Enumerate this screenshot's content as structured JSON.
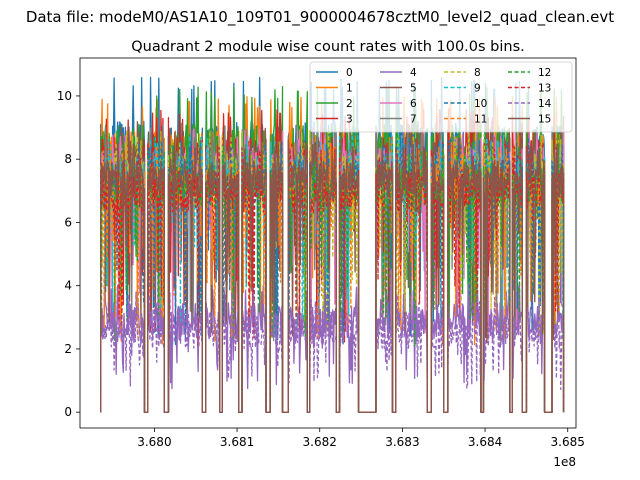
{
  "chart_data": {
    "type": "line",
    "suptitle": "Data file: modeM0/AS1A10_109T01_9000004678cztM0_level2_quad_clean.evt",
    "title": "Quadrant 2 module wise count rates with 100.0s bins.",
    "xlabel": "",
    "ylabel": "",
    "x_offset_label": "1e8",
    "xlim": [
      3.6791,
      3.6851
    ],
    "ylim": [
      -0.5,
      11.2
    ],
    "x_ticks": [
      3.68,
      3.681,
      3.682,
      3.683,
      3.684,
      3.685
    ],
    "x_tick_labels": [
      "3.680",
      "3.681",
      "3.682",
      "3.683",
      "3.684",
      "3.685"
    ],
    "y_ticks": [
      0,
      2,
      4,
      6,
      8,
      10
    ],
    "y_tick_labels": [
      "0",
      "2",
      "4",
      "6",
      "8",
      "10"
    ],
    "legend_location": "upper right",
    "legend_columns": 4,
    "observation_segments": [
      [
        3.67935,
        3.67988
      ],
      [
        3.67992,
        3.68012
      ],
      [
        3.68017,
        3.68058
      ],
      [
        3.68062,
        3.68079
      ],
      [
        3.68082,
        3.68102
      ],
      [
        3.68106,
        3.68135
      ],
      [
        3.6814,
        3.68155
      ],
      [
        3.68162,
        3.68185
      ],
      [
        3.68188,
        3.6822
      ],
      [
        3.68224,
        3.68247
      ],
      [
        3.68268,
        3.68288
      ],
      [
        3.68292,
        3.6833
      ],
      [
        3.68335,
        3.6835
      ],
      [
        3.68355,
        3.68395
      ],
      [
        3.68398,
        3.6843
      ],
      [
        3.68433,
        3.68445
      ],
      [
        3.6845,
        3.68472
      ],
      [
        3.68481,
        3.68495
      ]
    ],
    "series": [
      {
        "name": "0",
        "color": "#1f77b4",
        "dash": "solid",
        "level": 8.3,
        "spread": 0.9,
        "max": 10.6
      },
      {
        "name": "1",
        "color": "#ff7f0e",
        "dash": "solid",
        "level": 8.1,
        "spread": 0.8,
        "max": 10.0
      },
      {
        "name": "2",
        "color": "#2ca02c",
        "dash": "solid",
        "level": 8.2,
        "spread": 0.9,
        "max": 10.3
      },
      {
        "name": "3",
        "color": "#d62728",
        "dash": "solid",
        "level": 7.9,
        "spread": 0.8,
        "max": 9.6
      },
      {
        "name": "4",
        "color": "#9467bd",
        "dash": "solid",
        "level": 2.9,
        "spread": 0.6,
        "max": 4.1
      },
      {
        "name": "5",
        "color": "#8c564b",
        "dash": "solid",
        "level": 7.8,
        "spread": 0.7,
        "max": 9.2
      },
      {
        "name": "6",
        "color": "#e377c2",
        "dash": "solid",
        "level": 7.7,
        "spread": 0.7,
        "max": 9.0
      },
      {
        "name": "7",
        "color": "#7f7f7f",
        "dash": "solid",
        "level": 7.6,
        "spread": 0.7,
        "max": 9.1
      },
      {
        "name": "8",
        "color": "#bcbd22",
        "dash": "dashed",
        "level": 7.5,
        "spread": 0.7,
        "max": 8.9
      },
      {
        "name": "9",
        "color": "#17becf",
        "dash": "dashed",
        "level": 7.4,
        "spread": 0.7,
        "max": 8.8
      },
      {
        "name": "10",
        "color": "#1f77b4",
        "dash": "dashed",
        "level": 7.3,
        "spread": 0.7,
        "max": 8.7
      },
      {
        "name": "11",
        "color": "#ff7f0e",
        "dash": "dashed",
        "level": 7.2,
        "spread": 0.7,
        "max": 8.6
      },
      {
        "name": "12",
        "color": "#2ca02c",
        "dash": "dashed",
        "level": 7.1,
        "spread": 0.7,
        "max": 8.5
      },
      {
        "name": "13",
        "color": "#d62728",
        "dash": "dashed",
        "level": 7.0,
        "spread": 0.7,
        "max": 8.4
      },
      {
        "name": "14",
        "color": "#9467bd",
        "dash": "dashed",
        "level": 2.6,
        "spread": 0.6,
        "max": 3.8
      },
      {
        "name": "15",
        "color": "#8c564b",
        "dash": "solid",
        "level": 7.4,
        "spread": 0.6,
        "max": 8.6
      }
    ]
  }
}
